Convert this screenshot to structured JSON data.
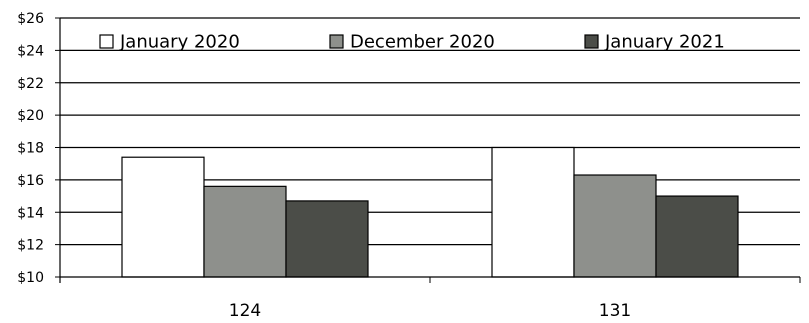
{
  "chart_data": {
    "type": "bar",
    "categories": [
      "124",
      "131"
    ],
    "series": [
      {
        "name": "January 2020",
        "values": [
          17.4,
          18.0
        ],
        "color": "#ffffff"
      },
      {
        "name": "December 2020",
        "values": [
          15.6,
          16.3
        ],
        "color": "#8e908c"
      },
      {
        "name": "January 2021",
        "values": [
          14.7,
          15.0
        ],
        "color": "#4b4d48"
      }
    ],
    "yticks": [
      "$10",
      "$12",
      "$14",
      "$16",
      "$18",
      "$20",
      "$22",
      "$24",
      "$26"
    ],
    "ylim": [
      10,
      26
    ],
    "ytick_step": 2,
    "grid": true,
    "legend_position": "top"
  }
}
